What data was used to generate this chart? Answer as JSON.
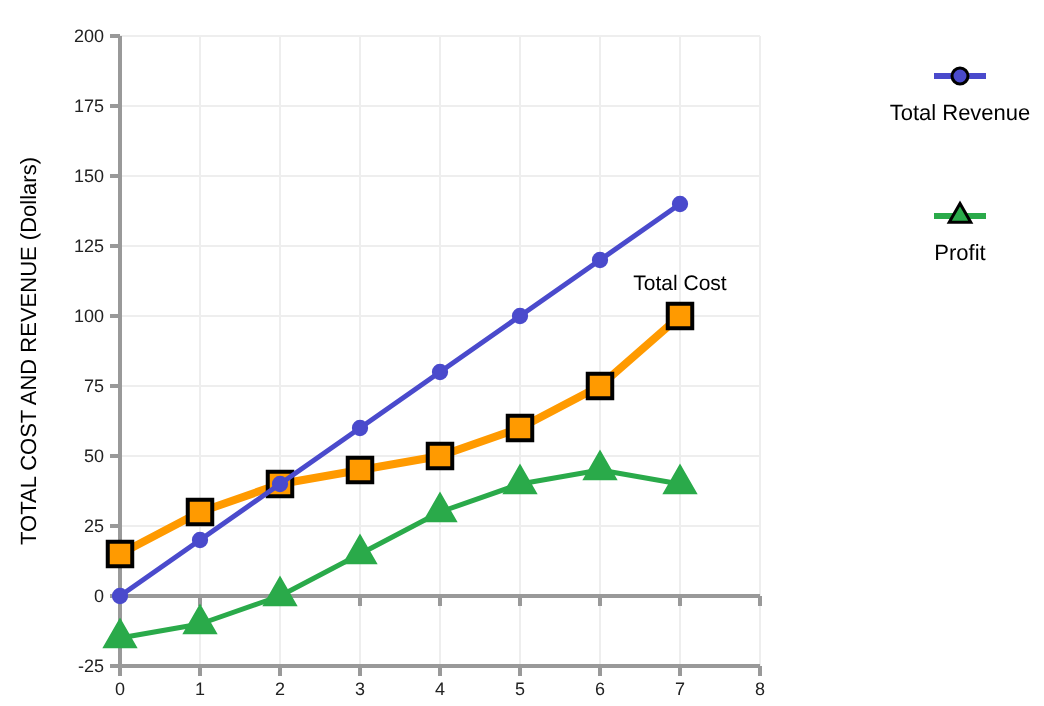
{
  "chart_data": {
    "type": "line",
    "ylabel": "TOTAL COST AND REVENUE (Dollars)",
    "x": [
      0,
      1,
      2,
      3,
      4,
      5,
      6,
      7
    ],
    "series": [
      {
        "name": "Total Revenue",
        "color": "#4a4acc",
        "marker": "circle",
        "values": [
          0,
          20,
          40,
          60,
          80,
          100,
          120,
          140
        ]
      },
      {
        "color": "#ff9a00",
        "marker": "square",
        "values": [
          15,
          30,
          40,
          45,
          50,
          60,
          75,
          100
        ]
      },
      {
        "name": "Profit",
        "color": "#2aaa4a",
        "marker": "triangle",
        "values": [
          -15,
          -10,
          0,
          15,
          30,
          40,
          45,
          40
        ]
      }
    ],
    "annotations": [
      {
        "text": "Total Cost",
        "x": 7,
        "y": 100
      }
    ],
    "xlim": [
      0,
      8
    ],
    "xticks": [
      0,
      1,
      2,
      3,
      4,
      5,
      6,
      7,
      8
    ],
    "ylim": [
      -25,
      200
    ],
    "yticks": [
      -25,
      0,
      25,
      50,
      75,
      100,
      125,
      150,
      175,
      200
    ],
    "grid": true,
    "legend": "right"
  }
}
